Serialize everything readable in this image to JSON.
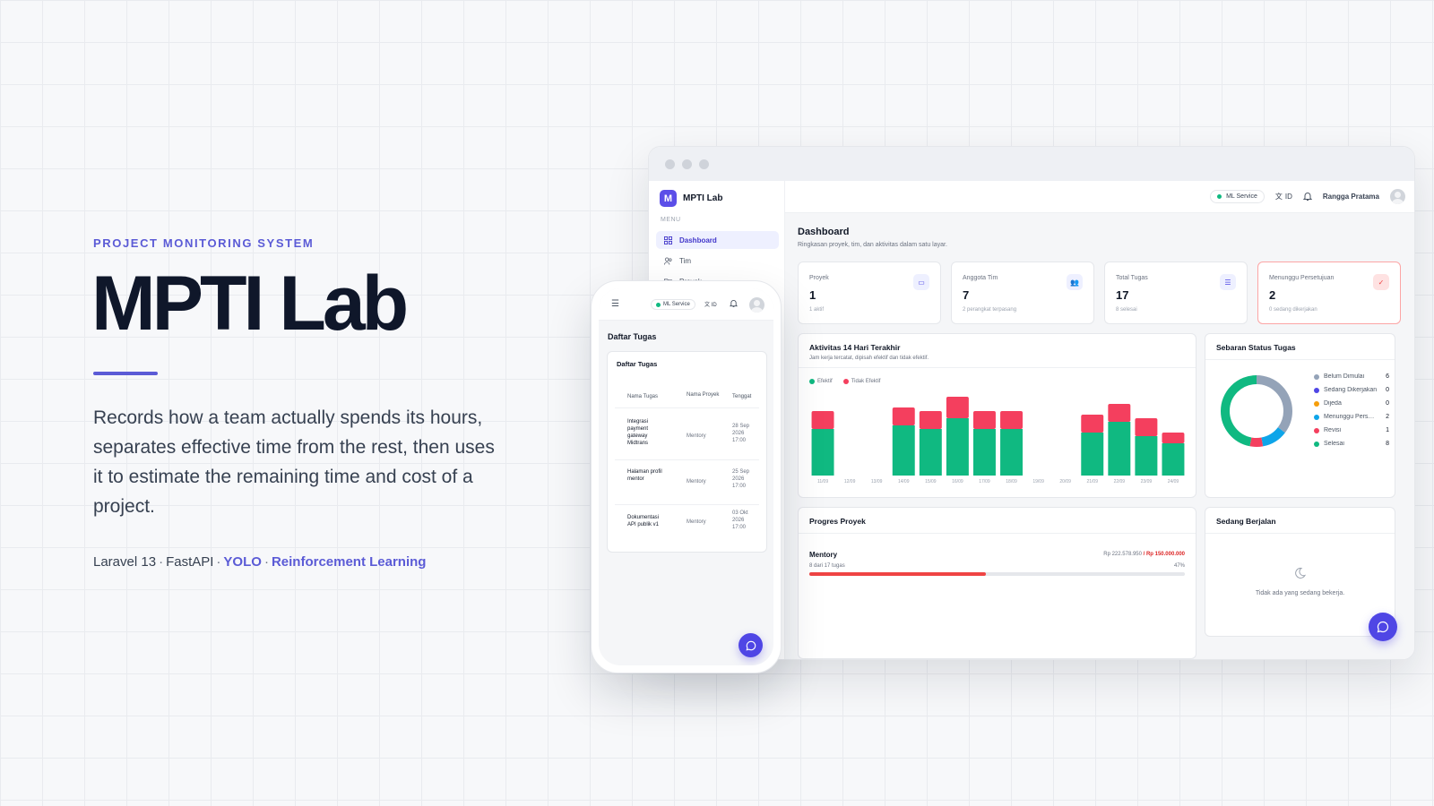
{
  "hero": {
    "eyebrow": "PROJECT MONITORING SYSTEM",
    "title": "MPTI Lab",
    "description": "Records how a team actually spends its hours, separates effective time from the rest, then uses it to estimate the remaining time and cost of a project.",
    "stack": [
      "Laravel 13",
      "FastAPI",
      "YOLO",
      "Reinforcement Learning"
    ]
  },
  "app": {
    "brand": {
      "logo_letter": "M",
      "name": "MPTI Lab"
    },
    "sidebar": {
      "caption": "MENU",
      "items": [
        {
          "label": "Dashboard",
          "icon": "grid-icon",
          "active": true
        },
        {
          "label": "Tim",
          "icon": "users-icon",
          "active": false
        },
        {
          "label": "Proyek",
          "icon": "folder-icon",
          "active": false
        }
      ]
    },
    "topbar": {
      "ml_service": "ML Service",
      "lang": "ID",
      "user": "Rangga Pratama"
    },
    "page": {
      "title": "Dashboard",
      "subtitle": "Ringkasan proyek, tim, dan aktivitas dalam satu layar."
    },
    "stats": [
      {
        "label": "Proyek",
        "value": "1",
        "sub": "1 aktif",
        "icon": "folder-icon"
      },
      {
        "label": "Anggota Tim",
        "value": "7",
        "sub": "2 perangkat terpasang",
        "icon": "users-icon"
      },
      {
        "label": "Total Tugas",
        "value": "17",
        "sub": "8 selesai",
        "icon": "list-icon"
      },
      {
        "label": "Menunggu Persetujuan",
        "value": "2",
        "sub": "0 sedang dikerjakan",
        "icon": "check-double-icon"
      }
    ],
    "activity": {
      "title": "Aktivitas 14 Hari Terakhir",
      "subtitle": "Jam kerja tercatat, dipisah efektif dan tidak efektif.",
      "legend": [
        "Efektif",
        "Tidak Efektif"
      ]
    },
    "status": {
      "title": "Sebaran Status Tugas",
      "items": [
        {
          "label": "Belum Dimulai",
          "count": "6",
          "color": "#94a3b8"
        },
        {
          "label": "Sedang Dikerjakan",
          "count": "0",
          "color": "#4f46e5"
        },
        {
          "label": "Dijeda",
          "count": "0",
          "color": "#f59e0b"
        },
        {
          "label": "Menunggu Persetujuan",
          "count": "2",
          "color": "#0ea5e9"
        },
        {
          "label": "Revisi",
          "count": "1",
          "color": "#f43f5e"
        },
        {
          "label": "Selesai",
          "count": "8",
          "color": "#10b981"
        }
      ]
    },
    "progress": {
      "title": "Progres Proyek",
      "project": "Mentory",
      "tasks": "8 dari 17 tugas",
      "budget_used": "Rp 222.578.950",
      "budget_total": "/ Rp 150.000.000",
      "percent_label": "47%",
      "percent": 47
    },
    "running": {
      "title": "Sedang Berjalan",
      "empty": "Tidak ada yang sedang bekerja."
    }
  },
  "chart_data": {
    "type": "bar",
    "stacked": true,
    "categories": [
      "11/09",
      "12/09",
      "13/09",
      "14/09",
      "15/09",
      "16/09",
      "17/09",
      "18/09",
      "19/09",
      "20/09",
      "21/09",
      "22/09",
      "23/09",
      "24/09"
    ],
    "series": [
      {
        "name": "Efektif",
        "color": "#10b981",
        "values": [
          6.5,
          0,
          0,
          7.0,
          6.5,
          8.0,
          6.5,
          6.5,
          0,
          0,
          6.0,
          7.5,
          5.5,
          4.5
        ]
      },
      {
        "name": "Tidak Efektif",
        "color": "#f43f5e",
        "values": [
          2.5,
          0,
          0,
          2.5,
          2.5,
          3.0,
          2.5,
          2.5,
          0,
          0,
          2.5,
          2.5,
          2.5,
          1.5
        ]
      }
    ],
    "ylim": [
      0,
      12
    ],
    "grid": false,
    "legend": "top-left"
  },
  "mobile": {
    "topbar": {
      "ml_service": "ML Service",
      "lang": "ID"
    },
    "page_title": "Daftar Tugas",
    "card_title": "Daftar Tugas",
    "columns": [
      "Nama Tugas",
      "Nama Proyek",
      "Tenggat"
    ],
    "rows": [
      {
        "task": "Integrasi payment gateway Midtrans",
        "project": "Mentory",
        "due": "28 Sep 2026 17:00"
      },
      {
        "task": "Halaman profil mentor",
        "project": "Mentory",
        "due": "25 Sep 2026 17:00"
      },
      {
        "task": "Dokumentasi API publik v1",
        "project": "Mentory",
        "due": "03 Okt 2026 17:00"
      }
    ]
  }
}
